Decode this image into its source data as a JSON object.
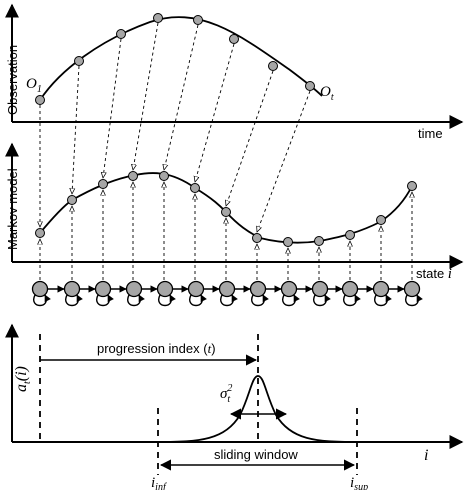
{
  "panels": {
    "observation": {
      "ylabel": "Observation",
      "xlabel": "time",
      "first_obs_symbol": "O",
      "first_obs_sub": "1",
      "last_obs_symbol": "O",
      "last_obs_sub": "t"
    },
    "markov": {
      "ylabel": "Markov model",
      "xlabel_text": "state ",
      "xlabel_var": "i"
    },
    "window": {
      "ylabel_symbol": "a",
      "ylabel_sub": "t",
      "ylabel_arg": "(i)",
      "xlabel": "i",
      "progression_label": "progression index (",
      "progression_var": "t",
      "progression_close": ")",
      "sigma_symbol": "σ",
      "sigma_sub": "t",
      "sigma_sup": "2",
      "sliding_label": "sliding window",
      "inf_symbol": "i",
      "inf_sub": "inf",
      "sup_symbol": "i",
      "sup_sub": "sup"
    }
  },
  "colors": {
    "node_fill": "#a6a6a6",
    "line": "#000000"
  }
}
